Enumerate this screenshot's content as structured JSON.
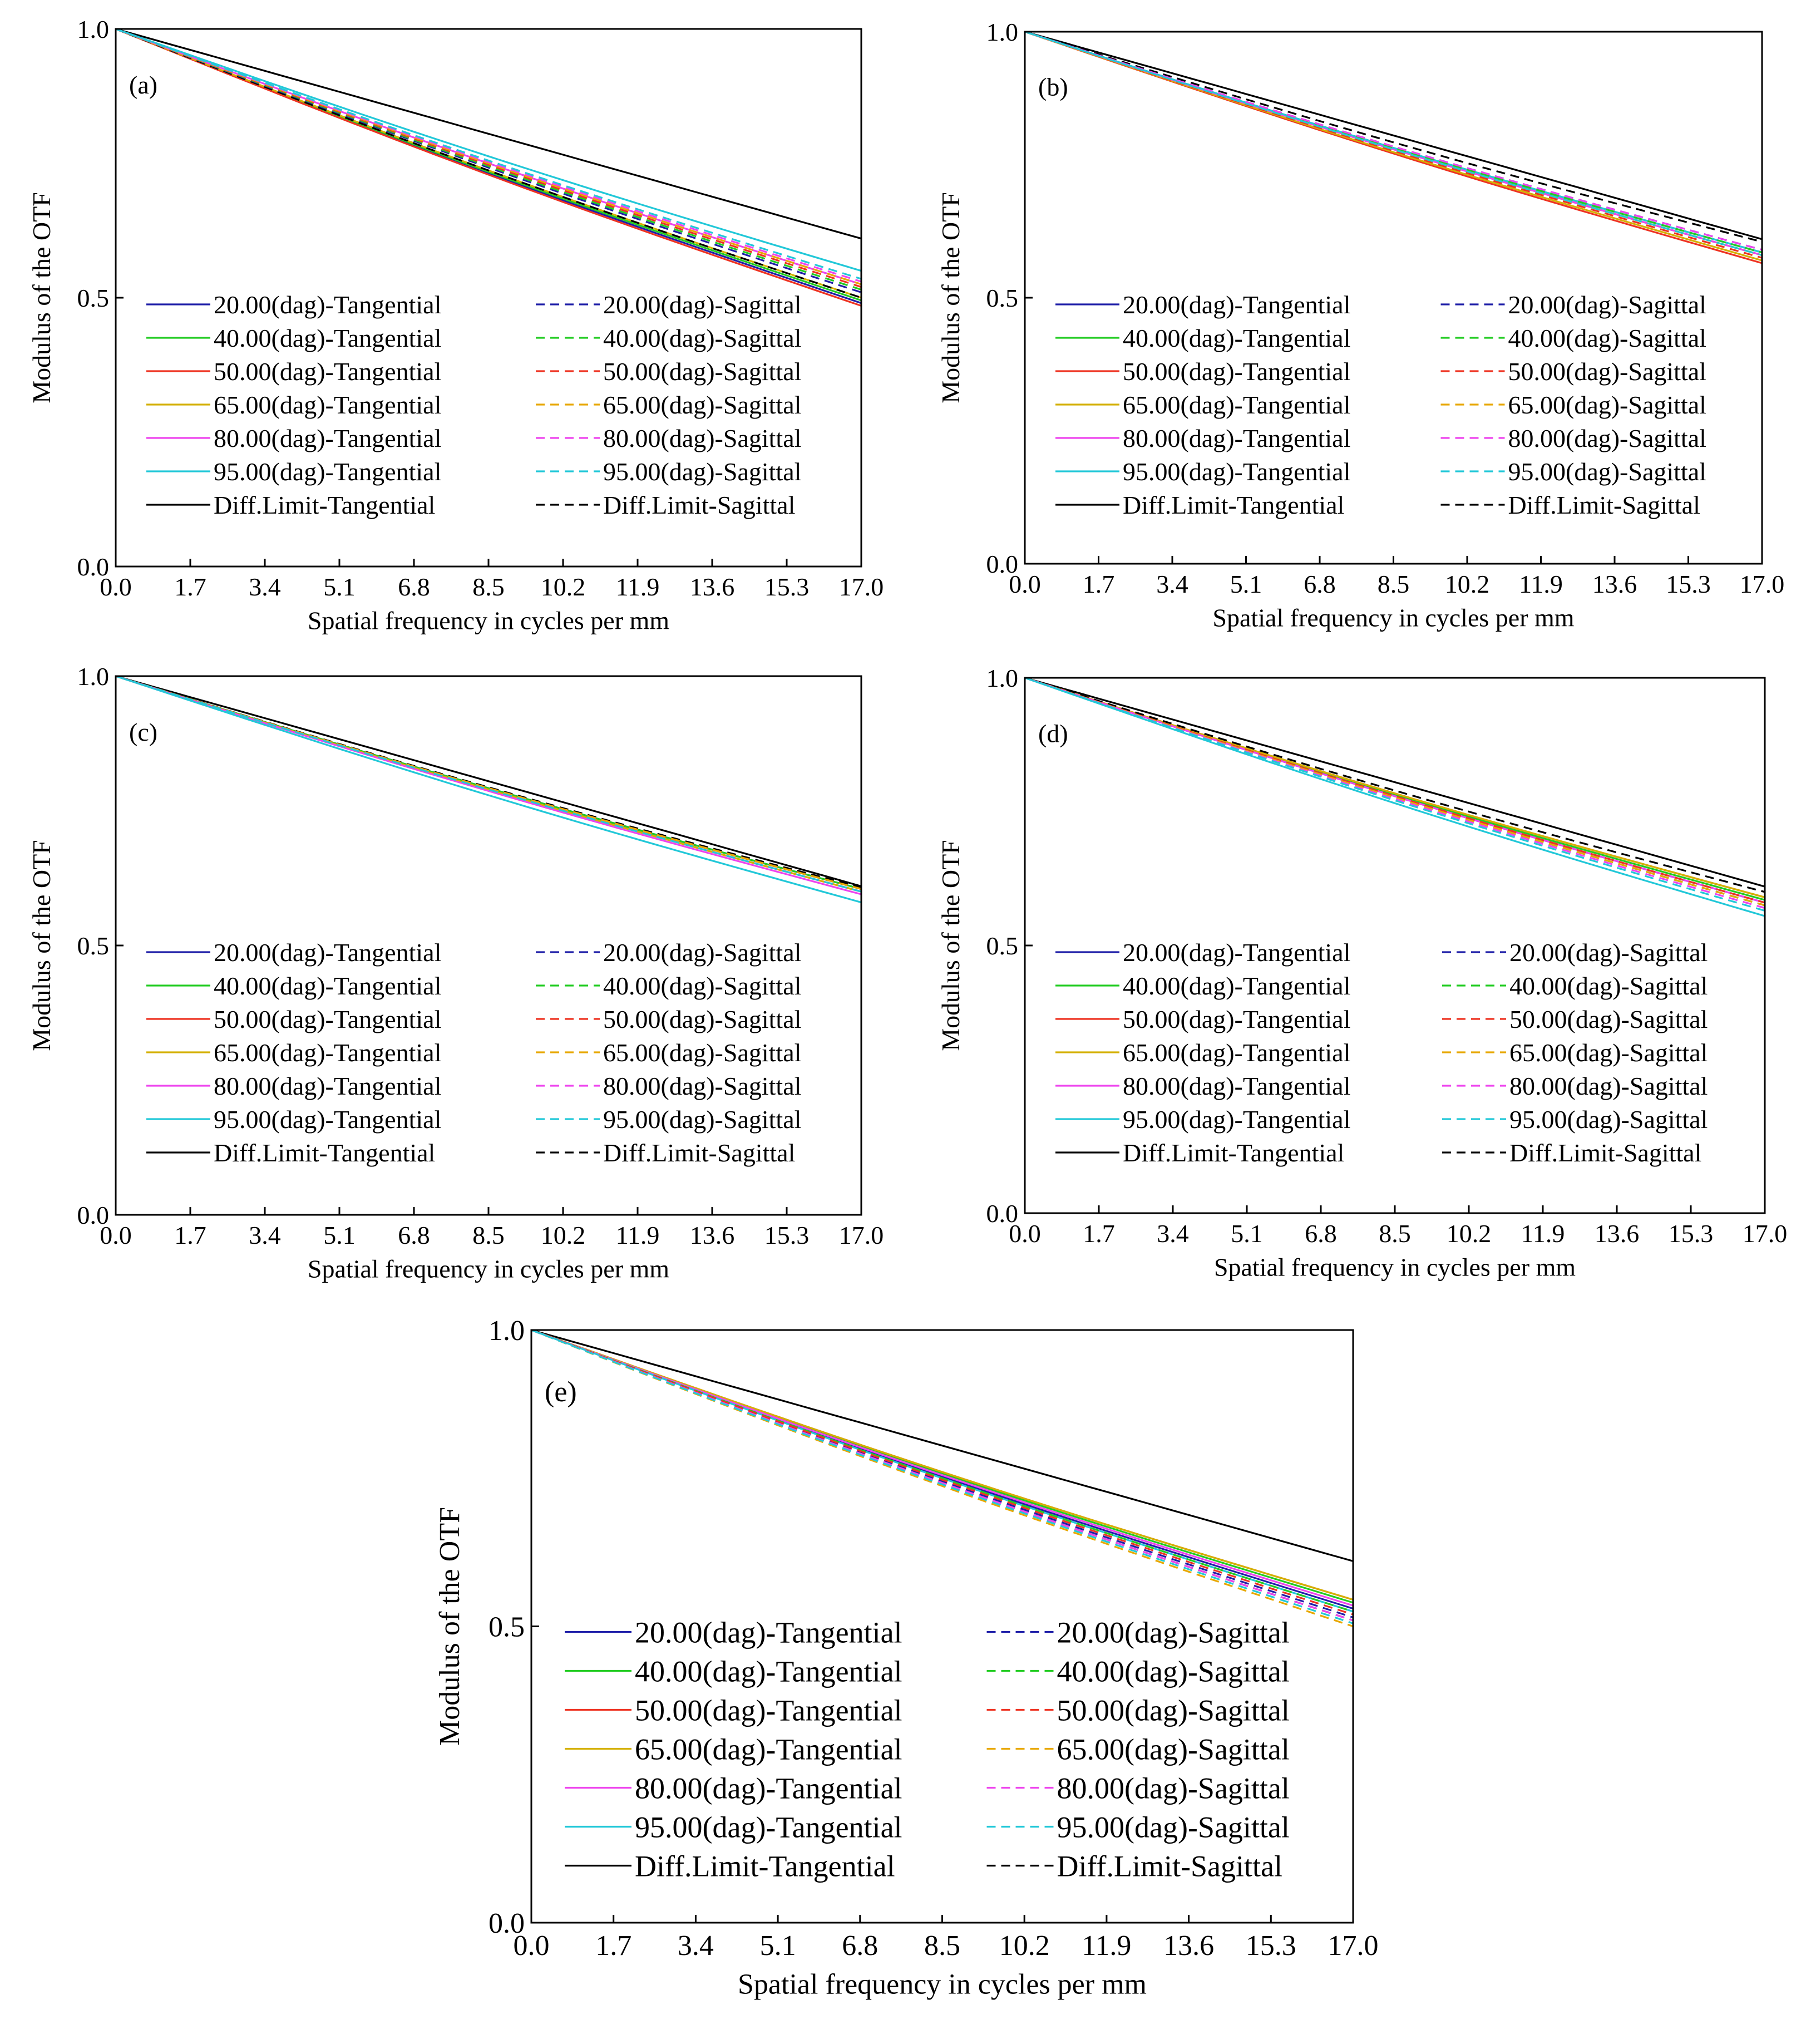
{
  "figure": {
    "background": "#ffffff"
  },
  "legend_template": [
    {
      "key": "t20",
      "label": "20.00(dag)-Tangential",
      "color": "#1f1fa8",
      "dash": false
    },
    {
      "key": "s20",
      "label": "20.00(dag)-Sagittal",
      "color": "#1f1fa8",
      "dash": true
    },
    {
      "key": "t40",
      "label": "40.00(dag)-Tangential",
      "color": "#22cc22",
      "dash": false
    },
    {
      "key": "s40",
      "label": "40.00(dag)-Sagittal",
      "color": "#22cc22",
      "dash": true
    },
    {
      "key": "t50",
      "label": "50.00(dag)-Tangential",
      "color": "#ee3322",
      "dash": false
    },
    {
      "key": "s50",
      "label": "50.00(dag)-Sagittal",
      "color": "#ee3322",
      "dash": true
    },
    {
      "key": "t65",
      "label": "65.00(dag)-Tangential",
      "color": "#d4b000",
      "dash": false
    },
    {
      "key": "s65",
      "label": "65.00(dag)-Sagittal",
      "color": "#e8a800",
      "dash": true
    },
    {
      "key": "t80",
      "label": "80.00(dag)-Tangential",
      "color": "#ee44ee",
      "dash": false
    },
    {
      "key": "s80",
      "label": "80.00(dag)-Sagittal",
      "color": "#ee44ee",
      "dash": true
    },
    {
      "key": "t95",
      "label": "95.00(dag)-Tangential",
      "color": "#22c8d8",
      "dash": false
    },
    {
      "key": "s95",
      "label": "95.00(dag)-Sagittal",
      "color": "#22c8d8",
      "dash": true
    },
    {
      "key": "dt",
      "label": "Diff.Limit-Tangential",
      "color": "#000000",
      "dash": false
    },
    {
      "key": "ds",
      "label": "Diff.Limit-Sagittal",
      "color": "#000000",
      "dash": true
    }
  ],
  "chart_data": [
    {
      "panel": "(a)",
      "type": "line",
      "xlabel": "Spatial frequency in cycles per mm",
      "ylabel": "Modulus of the OTF",
      "xlim": [
        0,
        17
      ],
      "ylim": [
        0,
        1
      ],
      "xticks": [
        "0.0",
        "1.7",
        "3.4",
        "5.1",
        "6.8",
        "8.5",
        "10.2",
        "11.9",
        "13.6",
        "15.3",
        "17.0"
      ],
      "yticks": [
        "0.0",
        "0.5",
        "1.0"
      ],
      "legend": "lower-left",
      "grid": false,
      "series_end_values": {
        "t20": 0.49,
        "s20": 0.51,
        "t40": 0.495,
        "s40": 0.515,
        "t50": 0.485,
        "s50": 0.52,
        "t65": 0.5,
        "s65": 0.525,
        "t80": 0.525,
        "s80": 0.53,
        "t95": 0.55,
        "s95": 0.535,
        "dt": 0.61,
        "ds": 0.5
      }
    },
    {
      "panel": "(b)",
      "type": "line",
      "xlabel": "Spatial frequency in cycles per mm",
      "ylabel": "Modulus of the OTF",
      "xlim": [
        0,
        17
      ],
      "ylim": [
        0,
        1
      ],
      "xticks": [
        "0.0",
        "1.7",
        "3.4",
        "5.1",
        "6.8",
        "8.5",
        "10.2",
        "11.9",
        "13.6",
        "15.3",
        "17.0"
      ],
      "yticks": [
        "0.0",
        "0.5",
        "1.0"
      ],
      "legend": "lower-left",
      "grid": false,
      "series_end_values": {
        "t20": 0.585,
        "s20": 0.59,
        "t40": 0.58,
        "s40": 0.585,
        "t50": 0.565,
        "s50": 0.575,
        "t65": 0.57,
        "s65": 0.58,
        "t80": 0.58,
        "s80": 0.59,
        "t95": 0.585,
        "s95": 0.58,
        "dt": 0.61,
        "ds": 0.605
      }
    },
    {
      "panel": "(c)",
      "type": "line",
      "xlabel": "Spatial frequency in cycles per mm",
      "ylabel": "Modulus of the OTF",
      "xlim": [
        0,
        17
      ],
      "ylim": [
        0,
        1
      ],
      "xticks": [
        "0.0",
        "1.7",
        "3.4",
        "5.1",
        "6.8",
        "8.5",
        "10.2",
        "11.9",
        "13.6",
        "15.3",
        "17.0"
      ],
      "yticks": [
        "0.0",
        "0.5",
        "1.0"
      ],
      "legend": "lower-left",
      "grid": false,
      "series_end_values": {
        "t20": 0.605,
        "s20": 0.605,
        "t40": 0.605,
        "s40": 0.605,
        "t50": 0.6,
        "s50": 0.605,
        "t65": 0.6,
        "s65": 0.605,
        "t80": 0.595,
        "s80": 0.6,
        "t95": 0.58,
        "s95": 0.6,
        "dt": 0.61,
        "ds": 0.608
      }
    },
    {
      "panel": "(d)",
      "type": "line",
      "xlabel": "Spatial frequency in cycles per mm",
      "ylabel": "Modulus of the OTF",
      "xlim": [
        0,
        17
      ],
      "ylim": [
        0,
        1
      ],
      "xticks": [
        "0.0",
        "1.7",
        "3.4",
        "5.1",
        "6.8",
        "8.5",
        "10.2",
        "11.9",
        "13.6",
        "15.3",
        "17.0"
      ],
      "yticks": [
        "0.0",
        "0.5",
        "1.0"
      ],
      "legend": "lower-left",
      "grid": false,
      "series_end_values": {
        "t20": 0.58,
        "s20": 0.575,
        "t40": 0.585,
        "s40": 0.575,
        "t50": 0.59,
        "s50": 0.58,
        "t65": 0.59,
        "s65": 0.575,
        "t80": 0.58,
        "s80": 0.57,
        "t95": 0.555,
        "s95": 0.565,
        "dt": 0.61,
        "ds": 0.6
      }
    },
    {
      "panel": "(e)",
      "type": "line",
      "xlabel": "Spatial frequency in cycles per mm",
      "ylabel": "Modulus of the OTF",
      "xlim": [
        0,
        17
      ],
      "ylim": [
        0,
        1
      ],
      "xticks": [
        "0.0",
        "1.7",
        "3.4",
        "5.1",
        "6.8",
        "8.5",
        "10.2",
        "11.9",
        "13.6",
        "15.3",
        "17.0"
      ],
      "yticks": [
        "0.0",
        "0.5",
        "1.0"
      ],
      "legend": "lower-left",
      "grid": false,
      "series_end_values": {
        "t20": 0.53,
        "s20": 0.515,
        "t40": 0.54,
        "s40": 0.525,
        "t50": 0.545,
        "s50": 0.52,
        "t65": 0.545,
        "s65": 0.5,
        "t80": 0.535,
        "s80": 0.51,
        "t95": 0.525,
        "s95": 0.505,
        "dt": 0.61,
        "ds": 0.51
      }
    }
  ]
}
